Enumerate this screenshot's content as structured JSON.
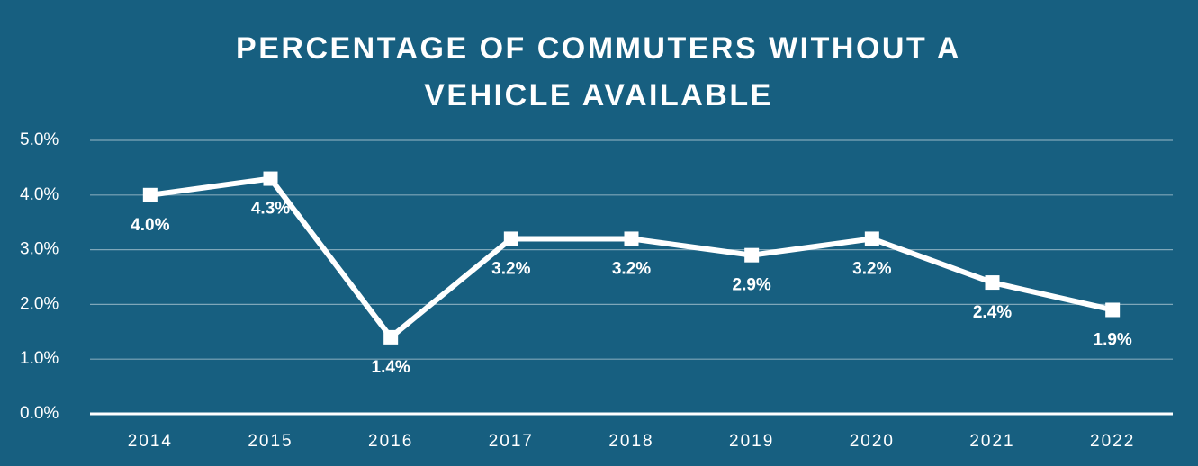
{
  "chart_data": {
    "type": "line",
    "title": "PERCENTAGE OF COMMUTERS WITHOUT A VEHICLE AVAILABLE",
    "categories": [
      "2014",
      "2015",
      "2016",
      "2017",
      "2018",
      "2019",
      "2020",
      "2021",
      "2022"
    ],
    "series": [
      {
        "name": "Commuters without a vehicle",
        "color": "#ffffff",
        "values": [
          4.0,
          4.3,
          1.4,
          3.2,
          3.2,
          2.9,
          3.2,
          2.4,
          1.9
        ],
        "value_labels": [
          "4.0%",
          "4.3%",
          "1.4%",
          "3.2%",
          "3.2%",
          "2.9%",
          "3.2%",
          "2.4%",
          "1.9%"
        ]
      }
    ],
    "ylim": [
      0,
      5
    ],
    "yticks": [
      {
        "value": 0,
        "label": "0.0%"
      },
      {
        "value": 1,
        "label": "1.0%"
      },
      {
        "value": 2,
        "label": "2.0%"
      },
      {
        "value": 3,
        "label": "3.0%"
      },
      {
        "value": 4,
        "label": "4.0%"
      },
      {
        "value": 5,
        "label": "5.0%"
      }
    ],
    "grid": true
  }
}
